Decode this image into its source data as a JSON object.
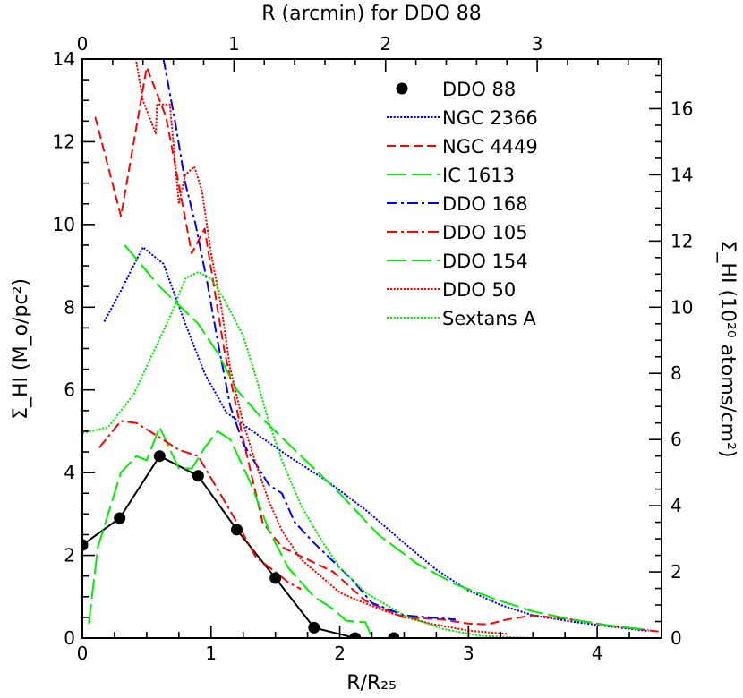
{
  "chart_data": {
    "type": "line",
    "title": "",
    "xlabel": "R/R₂₅",
    "ylabel": "Σ_HI (M_o/pc²)",
    "x2label": "R (arcmin) for DDO 88",
    "y2label": "Σ_HI (10²⁰ atoms/cm²)",
    "xlim": [
      0,
      4.5
    ],
    "ylim": [
      0,
      14
    ],
    "x2lim": [
      0,
      3.82
    ],
    "y2lim": [
      0,
      17.5
    ],
    "x_ticks": [
      0,
      1,
      2,
      3,
      4
    ],
    "y_ticks": [
      0,
      2,
      4,
      6,
      8,
      10,
      12,
      14
    ],
    "x2_ticks": [
      0,
      1,
      2,
      3
    ],
    "y2_ticks": [
      0,
      2,
      4,
      6,
      8,
      10,
      12,
      14,
      16
    ],
    "legend_position": "top-right",
    "grid": false,
    "series": [
      {
        "name": "DDO 88",
        "color": "#000000",
        "style": "solid-markers",
        "points": [
          [
            0.0,
            2.25
          ],
          [
            0.29,
            2.9
          ],
          [
            0.6,
            4.4
          ],
          [
            0.9,
            3.92
          ],
          [
            1.2,
            2.62
          ],
          [
            1.5,
            1.45
          ],
          [
            1.8,
            0.25
          ],
          [
            2.12,
            0.0
          ],
          [
            2.42,
            0.0
          ]
        ]
      },
      {
        "name": "NGC 2366",
        "color": "#0000ff",
        "style": "dotted",
        "points": [
          [
            0.17,
            7.65
          ],
          [
            0.3,
            8.4
          ],
          [
            0.47,
            9.45
          ],
          [
            0.63,
            9.05
          ],
          [
            0.8,
            7.6
          ],
          [
            0.95,
            6.4
          ],
          [
            1.12,
            5.45
          ],
          [
            1.3,
            5.05
          ],
          [
            1.6,
            4.4
          ],
          [
            1.9,
            3.8
          ],
          [
            2.2,
            3.1
          ],
          [
            2.5,
            2.3
          ],
          [
            2.75,
            1.65
          ],
          [
            3.0,
            1.15
          ],
          [
            3.25,
            0.8
          ],
          [
            3.5,
            0.55
          ],
          [
            3.8,
            0.4
          ],
          [
            4.1,
            0.28
          ],
          [
            4.4,
            0.17
          ]
        ]
      },
      {
        "name": "NGC 4449",
        "color": "#ff0000",
        "style": "dashed",
        "points": [
          [
            0.1,
            12.6
          ],
          [
            0.3,
            10.2
          ],
          [
            0.5,
            13.8
          ],
          [
            0.65,
            12.6
          ],
          [
            0.85,
            9.3
          ],
          [
            0.95,
            9.9
          ],
          [
            1.1,
            7.0
          ],
          [
            1.25,
            4.8
          ],
          [
            1.4,
            2.8
          ],
          [
            1.55,
            2.2
          ],
          [
            1.75,
            1.9
          ],
          [
            1.95,
            1.6
          ],
          [
            2.2,
            0.9
          ],
          [
            2.5,
            0.5
          ],
          [
            2.8,
            0.45
          ],
          [
            3.0,
            0.35
          ],
          [
            3.15,
            0.33
          ],
          [
            3.3,
            0.45
          ],
          [
            3.5,
            0.55
          ],
          [
            3.8,
            0.45
          ],
          [
            4.1,
            0.3
          ],
          [
            4.5,
            0.15
          ]
        ]
      },
      {
        "name": "IC 1613",
        "color": "#00ee00",
        "style": "long-dash",
        "points": [
          [
            0.05,
            0.35
          ],
          [
            0.12,
            2.2
          ],
          [
            0.3,
            4.0
          ],
          [
            0.42,
            4.4
          ],
          [
            0.5,
            4.3
          ],
          [
            0.6,
            5.1
          ],
          [
            0.75,
            4.1
          ],
          [
            0.85,
            4.1
          ],
          [
            0.95,
            4.6
          ],
          [
            1.05,
            5.0
          ],
          [
            1.15,
            4.8
          ],
          [
            1.3,
            3.8
          ],
          [
            1.45,
            2.6
          ],
          [
            1.6,
            1.7
          ],
          [
            1.8,
            1.0
          ],
          [
            1.95,
            0.7
          ],
          [
            2.05,
            0.42
          ],
          [
            2.2,
            0.38
          ],
          [
            2.25,
            0.0
          ]
        ]
      },
      {
        "name": "DDO 168",
        "color": "#0000ff",
        "style": "dash-dot",
        "points": [
          [
            0.63,
            14.0
          ],
          [
            0.72,
            12.5
          ],
          [
            0.8,
            11.0
          ],
          [
            0.88,
            10.0
          ],
          [
            0.97,
            8.6
          ],
          [
            1.05,
            7.2
          ],
          [
            1.15,
            5.6
          ],
          [
            1.25,
            4.7
          ],
          [
            1.35,
            4.2
          ],
          [
            1.45,
            3.7
          ],
          [
            1.55,
            3.5
          ],
          [
            1.65,
            2.8
          ],
          [
            1.8,
            2.3
          ],
          [
            1.95,
            1.85
          ],
          [
            2.1,
            1.4
          ],
          [
            2.25,
            0.85
          ],
          [
            2.5,
            0.55
          ],
          [
            2.9,
            0.45
          ]
        ]
      },
      {
        "name": "DDO 105",
        "color": "#ff0000",
        "style": "dash-dot",
        "points": [
          [
            0.13,
            4.6
          ],
          [
            0.3,
            5.25
          ],
          [
            0.42,
            5.2
          ],
          [
            0.6,
            4.85
          ],
          [
            0.75,
            4.55
          ],
          [
            0.9,
            4.4
          ],
          [
            1.05,
            3.6
          ],
          [
            1.2,
            2.8
          ],
          [
            1.35,
            1.95
          ],
          [
            1.5,
            1.6
          ],
          [
            1.6,
            1.35
          ],
          [
            1.7,
            1.18
          ]
        ]
      },
      {
        "name": "DDO 154",
        "color": "#00ee00",
        "style": "long-dash",
        "points": [
          [
            0.33,
            9.5
          ],
          [
            0.6,
            8.5
          ],
          [
            0.9,
            7.6
          ],
          [
            1.05,
            6.9
          ],
          [
            1.2,
            6.0
          ],
          [
            1.4,
            5.3
          ],
          [
            1.7,
            4.4
          ],
          [
            2.0,
            3.5
          ],
          [
            2.3,
            2.5
          ],
          [
            2.6,
            1.8
          ],
          [
            2.9,
            1.3
          ],
          [
            3.2,
            0.95
          ],
          [
            3.5,
            0.65
          ],
          [
            3.8,
            0.45
          ],
          [
            4.1,
            0.3
          ],
          [
            4.4,
            0.2
          ]
        ]
      },
      {
        "name": "DDO 50",
        "color": "#ff0000",
        "style": "dotted",
        "points": [
          [
            0.33,
            14.0
          ],
          [
            0.4,
            14.3
          ],
          [
            0.47,
            13.0
          ],
          [
            0.57,
            12.2
          ],
          [
            0.58,
            12.9
          ],
          [
            0.68,
            12.9
          ],
          [
            0.75,
            10.5
          ],
          [
            0.8,
            11.2
          ],
          [
            0.87,
            11.4
          ],
          [
            0.93,
            10.8
          ],
          [
            1.0,
            9.3
          ],
          [
            1.08,
            8.0
          ],
          [
            1.15,
            6.5
          ],
          [
            1.25,
            5.2
          ],
          [
            1.35,
            4.2
          ],
          [
            1.45,
            3.3
          ],
          [
            1.55,
            2.6
          ],
          [
            1.7,
            1.9
          ],
          [
            1.85,
            1.5
          ],
          [
            2.0,
            1.1
          ],
          [
            2.15,
            0.9
          ],
          [
            2.4,
            0.6
          ],
          [
            2.7,
            0.35
          ],
          [
            3.0,
            0.18
          ],
          [
            3.3,
            0.1
          ]
        ]
      },
      {
        "name": "Sextans A",
        "color": "#00ee00",
        "style": "dotted",
        "points": [
          [
            0.0,
            4.95
          ],
          [
            0.2,
            5.1
          ],
          [
            0.4,
            5.9
          ],
          [
            0.55,
            6.9
          ],
          [
            0.7,
            7.9
          ],
          [
            0.8,
            8.7
          ],
          [
            0.9,
            8.85
          ],
          [
            1.0,
            8.7
          ],
          [
            1.1,
            8.2
          ],
          [
            1.25,
            7.3
          ],
          [
            1.35,
            6.3
          ],
          [
            1.45,
            5.2
          ],
          [
            1.55,
            4.3
          ],
          [
            1.7,
            3.2
          ],
          [
            1.85,
            2.4
          ],
          [
            2.0,
            1.7
          ],
          [
            2.2,
            1.1
          ],
          [
            2.5,
            0.55
          ],
          [
            2.8,
            0.22
          ],
          [
            3.1,
            0.05
          ],
          [
            3.5,
            0.0
          ]
        ]
      }
    ]
  }
}
